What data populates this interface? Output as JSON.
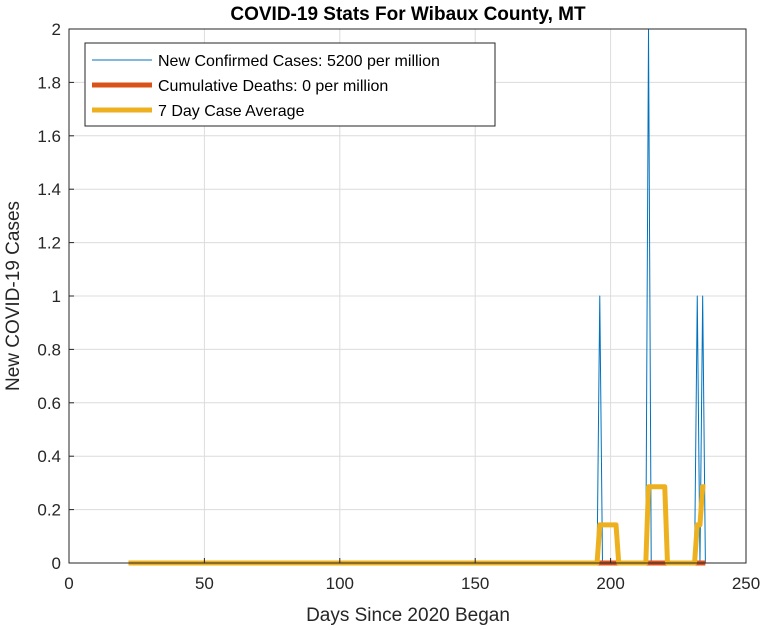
{
  "chart_data": {
    "type": "line",
    "title": "COVID-19 Stats For Wibaux County, MT",
    "xlabel": "Days Since 2020 Began",
    "ylabel": "New COVID-19 Cases",
    "xlim": [
      0,
      250
    ],
    "ylim": [
      0,
      2
    ],
    "xticks": [
      0,
      50,
      100,
      150,
      200,
      250
    ],
    "yticks": [
      0,
      0.2,
      0.4,
      0.6,
      0.8,
      1,
      1.2,
      1.4,
      1.6,
      1.8,
      2
    ],
    "grid": true,
    "legend_position": "top-left",
    "series": [
      {
        "name": "New Confirmed Cases: 5200 per million",
        "color": "#0072BD",
        "points": [
          [
            22,
            0
          ],
          [
            195,
            0
          ],
          [
            196,
            1
          ],
          [
            197,
            0
          ],
          [
            213,
            0
          ],
          [
            214,
            2
          ],
          [
            215,
            0
          ],
          [
            231,
            0
          ],
          [
            232,
            1
          ],
          [
            233,
            0
          ],
          [
            234,
            1
          ],
          [
            235,
            0
          ]
        ]
      },
      {
        "name": "Cumulative Deaths: 0 per million",
        "color": "#D95319",
        "points": [
          [
            22,
            0
          ],
          [
            235,
            0
          ]
        ]
      },
      {
        "name": "7 Day Case Average",
        "color": "#EDB120",
        "points": [
          [
            22,
            0
          ],
          [
            195,
            0
          ],
          [
            196,
            0.1429
          ],
          [
            202,
            0.1429
          ],
          [
            203,
            0
          ],
          [
            213,
            0
          ],
          [
            214,
            0.2857
          ],
          [
            220,
            0.2857
          ],
          [
            221,
            0
          ],
          [
            231,
            0
          ],
          [
            232,
            0.1429
          ],
          [
            233,
            0.1429
          ],
          [
            234,
            0.2857
          ],
          [
            235,
            0.2857
          ]
        ]
      }
    ]
  }
}
